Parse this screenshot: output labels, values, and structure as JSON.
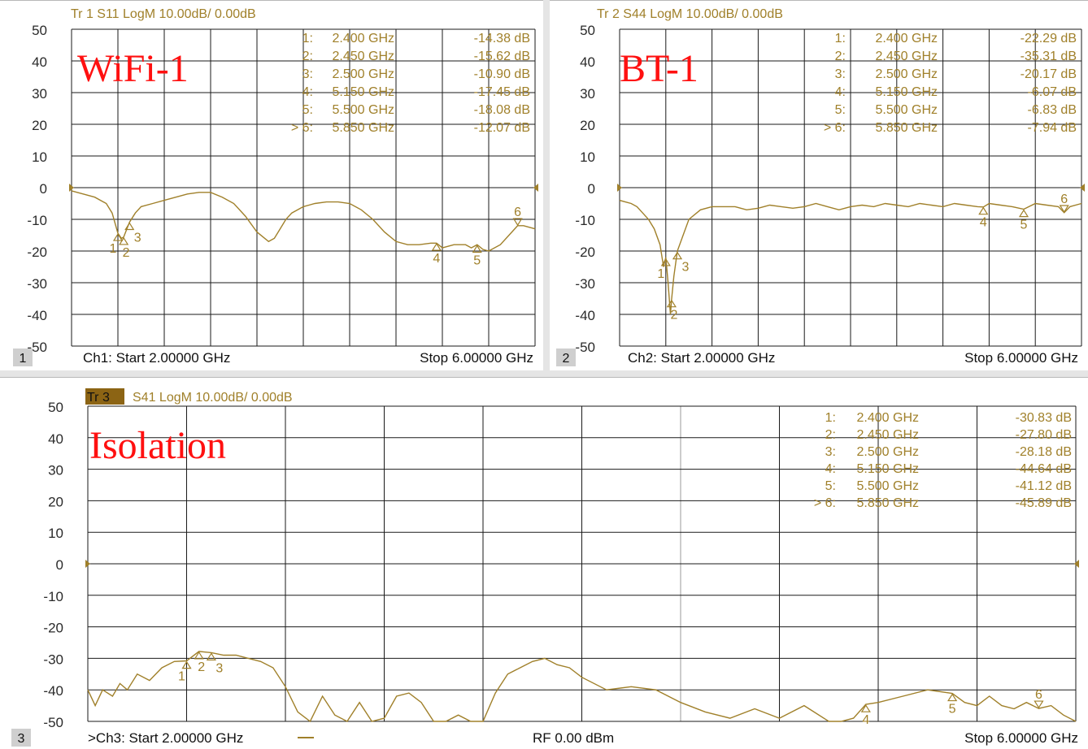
{
  "colors": {
    "trace": "#a0802a",
    "grid": "#1a1a1a",
    "text": "#2a2a2a",
    "annot": "#ff1010",
    "tr3_bg": "#8c6414",
    "panel_num_bg": "#cfcfcf"
  },
  "panels": [
    {
      "id": "p1",
      "number": "1",
      "trace_header": "Tr  1   S11 LogM 10.00dB/  0.00dB",
      "annotation": "WiFi-1",
      "footer_start": "Ch1:  Start   2.00000 GHz",
      "footer_stop": "Stop  6.00000 GHz",
      "markers": [
        {
          "num": "1:",
          "freq": "2.400  GHz",
          "val": "-14.38 dB"
        },
        {
          "num": "2:",
          "freq": "2.450  GHz",
          "val": "-15.62 dB"
        },
        {
          "num": "3:",
          "freq": "2.500  GHz",
          "val": "-10.90 dB"
        },
        {
          "num": "4:",
          "freq": "5.150  GHz",
          "val": "-17.45 dB"
        },
        {
          "num": "5:",
          "freq": "5.500  GHz",
          "val": "-18.08 dB"
        },
        {
          "num": "> 6:",
          "freq": "5.850  GHz",
          "val": "-12.07 dB"
        }
      ]
    },
    {
      "id": "p2",
      "number": "2",
      "trace_header": "Tr  2   S44 LogM 10.00dB/  0.00dB",
      "annotation": "BT-1",
      "footer_start": "Ch2:  Start   2.00000 GHz",
      "footer_stop": "Stop  6.00000 GHz",
      "markers": [
        {
          "num": "1:",
          "freq": "2.400  GHz",
          "val": "-22.29 dB"
        },
        {
          "num": "2:",
          "freq": "2.450  GHz",
          "val": "-35.31 dB"
        },
        {
          "num": "3:",
          "freq": "2.500  GHz",
          "val": "-20.17 dB"
        },
        {
          "num": "4:",
          "freq": "5.150  GHz",
          "val": "-6.07 dB"
        },
        {
          "num": "5:",
          "freq": "5.500  GHz",
          "val": "-6.83 dB"
        },
        {
          "num": "> 6:",
          "freq": "5.850  GHz",
          "val": "-7.94 dB"
        }
      ]
    },
    {
      "id": "p3",
      "number": "3",
      "trace_tag": "Tr 3",
      "trace_header": "S41 LogM 10.00dB/  0.00dB",
      "annotation": "Isolation",
      "footer_start": ">Ch3:  Start   2.00000 GHz",
      "footer_rf": "RF     0.00  dBm",
      "footer_stop": "Stop  6.00000 GHz",
      "markers": [
        {
          "num": "1:",
          "freq": "2.400  GHz",
          "val": "-30.83 dB"
        },
        {
          "num": "2:",
          "freq": "2.450  GHz",
          "val": "-27.80 dB"
        },
        {
          "num": "3:",
          "freq": "2.500  GHz",
          "val": "-28.18 dB"
        },
        {
          "num": "4:",
          "freq": "5.150  GHz",
          "val": "-44.64 dB"
        },
        {
          "num": "5:",
          "freq": "5.500  GHz",
          "val": "-41.12 dB"
        },
        {
          "num": "> 6:",
          "freq": "5.850  GHz",
          "val": "-45.89 dB"
        }
      ]
    }
  ],
  "chart_data": [
    {
      "type": "line",
      "title": "Tr  1   S11 LogM 10.00dB/  0.00dB",
      "xlim": [
        2.0,
        6.0
      ],
      "ylim": [
        -50,
        50
      ],
      "yticks": [
        50,
        40,
        30,
        20,
        10,
        0,
        -10,
        -20,
        -30,
        -40,
        -50
      ],
      "grid": true,
      "series": [
        {
          "name": "S11",
          "x": [
            2.0,
            2.1,
            2.2,
            2.3,
            2.35,
            2.4,
            2.43,
            2.45,
            2.5,
            2.55,
            2.6,
            2.7,
            2.8,
            2.9,
            3.0,
            3.1,
            3.2,
            3.3,
            3.4,
            3.5,
            3.6,
            3.7,
            3.75,
            3.8,
            3.85,
            3.9,
            4.0,
            4.1,
            4.2,
            4.3,
            4.4,
            4.5,
            4.6,
            4.7,
            4.8,
            4.9,
            5.0,
            5.1,
            5.15,
            5.2,
            5.3,
            5.4,
            5.45,
            5.5,
            5.55,
            5.6,
            5.7,
            5.8,
            5.85,
            5.9,
            6.0
          ],
          "y": [
            -1,
            -2,
            -3,
            -5,
            -8,
            -14.4,
            -16,
            -15.6,
            -10.9,
            -8,
            -6,
            -5,
            -4,
            -3,
            -2,
            -1.5,
            -1.5,
            -3,
            -5,
            -9,
            -14,
            -17,
            -16,
            -13,
            -10,
            -8,
            -6,
            -5,
            -4.5,
            -4.5,
            -5,
            -7,
            -10,
            -14,
            -17,
            -18,
            -18,
            -17.5,
            -17.5,
            -19,
            -18,
            -18,
            -19,
            -18,
            -19.5,
            -20,
            -18,
            -14,
            -12,
            -12,
            -13
          ]
        }
      ],
      "markers": [
        {
          "n": 1,
          "x": 2.4,
          "y": -14.38
        },
        {
          "n": 2,
          "x": 2.45,
          "y": -15.62
        },
        {
          "n": 3,
          "x": 2.5,
          "y": -10.9
        },
        {
          "n": 4,
          "x": 5.15,
          "y": -17.45
        },
        {
          "n": 5,
          "x": 5.5,
          "y": -18.08
        },
        {
          "n": 6,
          "x": 5.85,
          "y": -12.07
        }
      ]
    },
    {
      "type": "line",
      "title": "Tr  2   S44 LogM 10.00dB/  0.00dB",
      "xlim": [
        2.0,
        6.0
      ],
      "ylim": [
        -50,
        50
      ],
      "yticks": [
        50,
        40,
        30,
        20,
        10,
        0,
        -10,
        -20,
        -30,
        -40,
        -50
      ],
      "grid": true,
      "series": [
        {
          "name": "S44",
          "x": [
            2.0,
            2.05,
            2.1,
            2.15,
            2.2,
            2.25,
            2.3,
            2.35,
            2.38,
            2.4,
            2.42,
            2.44,
            2.45,
            2.47,
            2.5,
            2.55,
            2.6,
            2.7,
            2.8,
            2.9,
            3.0,
            3.1,
            3.2,
            3.3,
            3.4,
            3.5,
            3.6,
            3.7,
            3.8,
            3.9,
            4.0,
            4.1,
            4.2,
            4.3,
            4.4,
            4.5,
            4.6,
            4.7,
            4.8,
            4.9,
            5.0,
            5.1,
            5.15,
            5.2,
            5.3,
            5.4,
            5.5,
            5.6,
            5.7,
            5.8,
            5.85,
            5.9,
            6.0
          ],
          "y": [
            -4,
            -4.5,
            -5,
            -6,
            -8,
            -10,
            -13,
            -18,
            -25,
            -22,
            -30,
            -40,
            -35.3,
            -28,
            -20,
            -15,
            -10,
            -7,
            -6,
            -6,
            -6,
            -7,
            -6.5,
            -5.5,
            -6,
            -6.5,
            -6,
            -5,
            -6,
            -7,
            -6,
            -5.5,
            -6,
            -5,
            -5.5,
            -6,
            -5,
            -5.5,
            -6,
            -5,
            -5.5,
            -6,
            -6.1,
            -5,
            -5.5,
            -6,
            -6.8,
            -5,
            -5.5,
            -6,
            -7.9,
            -6,
            -5
          ]
        }
      ],
      "markers": [
        {
          "n": 1,
          "x": 2.4,
          "y": -22.29
        },
        {
          "n": 2,
          "x": 2.45,
          "y": -35.31
        },
        {
          "n": 3,
          "x": 2.5,
          "y": -20.17
        },
        {
          "n": 4,
          "x": 5.15,
          "y": -6.07
        },
        {
          "n": 5,
          "x": 5.5,
          "y": -6.83
        },
        {
          "n": 6,
          "x": 5.85,
          "y": -7.94
        }
      ]
    },
    {
      "type": "line",
      "title": "S41 LogM 10.00dB/  0.00dB",
      "xlim": [
        2.0,
        6.0
      ],
      "ylim": [
        -50,
        50
      ],
      "yticks": [
        50,
        40,
        30,
        20,
        10,
        0,
        -10,
        -20,
        -30,
        -40,
        -50
      ],
      "grid": true,
      "series": [
        {
          "name": "S41",
          "x": [
            2.0,
            2.03,
            2.06,
            2.1,
            2.13,
            2.16,
            2.2,
            2.25,
            2.3,
            2.35,
            2.4,
            2.45,
            2.5,
            2.55,
            2.6,
            2.65,
            2.7,
            2.75,
            2.8,
            2.85,
            2.9,
            2.95,
            3.0,
            3.05,
            3.1,
            3.15,
            3.2,
            3.25,
            3.3,
            3.35,
            3.4,
            3.45,
            3.5,
            3.55,
            3.6,
            3.65,
            3.7,
            3.75,
            3.8,
            3.85,
            3.9,
            3.95,
            4.0,
            4.1,
            4.2,
            4.3,
            4.4,
            4.5,
            4.6,
            4.7,
            4.8,
            4.9,
            5.0,
            5.05,
            5.1,
            5.15,
            5.2,
            5.3,
            5.4,
            5.5,
            5.55,
            5.6,
            5.65,
            5.7,
            5.75,
            5.8,
            5.85,
            5.9,
            5.95,
            6.0
          ],
          "y": [
            -40,
            -45,
            -40,
            -42,
            -38,
            -40,
            -35,
            -37,
            -33,
            -31,
            -30.8,
            -27.8,
            -28.2,
            -29,
            -29,
            -30,
            -31,
            -33,
            -39,
            -47,
            -50,
            -42,
            -48,
            -51,
            -44,
            -50,
            -49,
            -42,
            -41,
            -44,
            -52,
            -50,
            -48,
            -51,
            -50,
            -41,
            -35,
            -33,
            -31,
            -30,
            -32,
            -33,
            -36,
            -40,
            -39,
            -40,
            -44,
            -47,
            -49,
            -46,
            -49,
            -45,
            -50,
            -50,
            -49,
            -44.6,
            -44,
            -42,
            -40,
            -41.1,
            -44,
            -45,
            -42,
            -45,
            -46,
            -44,
            -45.9,
            -45,
            -48,
            -50
          ]
        }
      ],
      "markers": [
        {
          "n": 1,
          "x": 2.4,
          "y": -30.83
        },
        {
          "n": 2,
          "x": 2.45,
          "y": -27.8
        },
        {
          "n": 3,
          "x": 2.5,
          "y": -28.18
        },
        {
          "n": 4,
          "x": 5.15,
          "y": -44.64
        },
        {
          "n": 5,
          "x": 5.5,
          "y": -41.12
        },
        {
          "n": 6,
          "x": 5.85,
          "y": -45.89
        }
      ]
    }
  ]
}
